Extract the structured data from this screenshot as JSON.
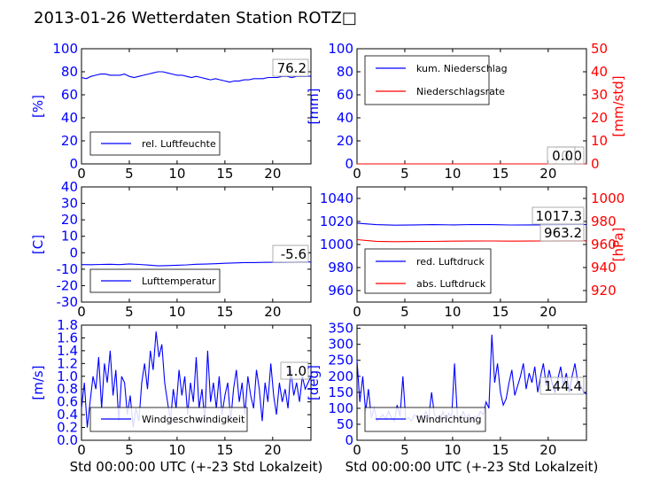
{
  "title": "2013-01-26 Wetterdaten Station ROTZ□",
  "colors": {
    "blue": "#0000ff",
    "red": "#ff0000",
    "black": "#000000"
  },
  "chart_data": [
    {
      "id": "humidity",
      "type": "line",
      "xlim": [
        0,
        24
      ],
      "x_ticks": [
        0,
        5,
        10,
        15,
        20
      ],
      "ylim": [
        0,
        100
      ],
      "y_ticks": [
        0,
        20,
        40,
        60,
        80,
        100
      ],
      "ylabel": "[%]",
      "series": [
        {
          "name": "rel. Luftfeuchte",
          "color": "#0000ff",
          "x": [
            0,
            0.5,
            1,
            1.5,
            2,
            2.5,
            3,
            3.5,
            4,
            4.5,
            5,
            5.5,
            6,
            6.5,
            7,
            7.5,
            8,
            8.5,
            9,
            9.5,
            10,
            10.5,
            11,
            11.5,
            12,
            12.5,
            13,
            13.5,
            14,
            14.5,
            15,
            15.5,
            16,
            16.5,
            17,
            17.5,
            18,
            18.5,
            19,
            19.5,
            20,
            20.5,
            21,
            21.5,
            22,
            22.5,
            23,
            23.5,
            24
          ],
          "y": [
            75,
            74,
            76,
            77,
            78,
            78,
            77,
            77,
            77,
            78,
            76,
            75,
            76,
            77,
            78,
            79,
            80,
            80,
            79,
            78,
            77,
            77,
            76,
            75,
            76,
            75,
            74,
            73,
            74,
            73,
            72,
            71,
            72,
            72,
            73,
            73,
            74,
            74,
            74,
            75,
            75,
            75,
            76,
            76,
            75,
            76,
            76,
            76,
            76.2
          ]
        }
      ],
      "last_value_label": "76.2",
      "legend_placement": "lower-left"
    },
    {
      "id": "precip",
      "type": "line",
      "xlim": [
        0,
        24
      ],
      "x_ticks": [
        0,
        5,
        10,
        15,
        20
      ],
      "ylim": [
        0,
        100
      ],
      "y_ticks": [
        0,
        20,
        40,
        60,
        80,
        100
      ],
      "ylabel": "[mm]",
      "y2lim": [
        0,
        50
      ],
      "y2_ticks": [
        0,
        10,
        20,
        30,
        40,
        50
      ],
      "y2label": "[mm/std]",
      "series": [
        {
          "name": "kum. Niederschlag",
          "color": "#0000ff",
          "axis": "left",
          "x": [
            0,
            24
          ],
          "y": [
            0,
            0
          ]
        },
        {
          "name": "Niederschlagsrate",
          "color": "#ff0000",
          "axis": "right",
          "x": [
            0,
            24
          ],
          "y": [
            0,
            0
          ]
        }
      ],
      "value_labels": [
        "0.0",
        "0.0"
      ],
      "legend_placement": "upper-left"
    },
    {
      "id": "temperature",
      "type": "line",
      "xlim": [
        0,
        24
      ],
      "x_ticks": [
        0,
        5,
        10,
        15,
        20
      ],
      "ylim": [
        -30,
        40
      ],
      "y_ticks": [
        -30,
        -20,
        -10,
        0,
        10,
        20,
        30,
        40
      ],
      "ylabel": "[C]",
      "series": [
        {
          "name": "Lufttemperatur",
          "color": "#0000ff",
          "x": [
            0,
            1,
            2,
            3,
            4,
            5,
            6,
            7,
            8,
            9,
            10,
            11,
            12,
            13,
            14,
            15,
            16,
            17,
            18,
            19,
            20,
            21,
            22,
            23,
            24
          ],
          "y": [
            -7.2,
            -7.3,
            -7.1,
            -7.0,
            -7.2,
            -6.8,
            -7.1,
            -7.5,
            -8.0,
            -7.8,
            -7.6,
            -7.4,
            -7.0,
            -6.9,
            -6.7,
            -6.4,
            -6.2,
            -6.0,
            -6.0,
            -5.9,
            -5.8,
            -5.8,
            -5.7,
            -5.6,
            -5.6
          ]
        }
      ],
      "last_value_label": "-5.6",
      "legend_placement": "lower-left"
    },
    {
      "id": "pressure",
      "type": "line",
      "xlim": [
        0,
        24
      ],
      "x_ticks": [
        0,
        5,
        10,
        15,
        20
      ],
      "ylim": [
        950,
        1050
      ],
      "y_ticks": [
        960,
        980,
        1000,
        1020,
        1040
      ],
      "ylabel": "",
      "y2lim": [
        910,
        1010
      ],
      "y2_ticks": [
        920,
        940,
        960,
        980,
        1000
      ],
      "y2label": "[hPa]",
      "series": [
        {
          "name": "red. Luftdruck",
          "color": "#0000ff",
          "axis": "left",
          "x": [
            0,
            2,
            4,
            6,
            8,
            10,
            12,
            14,
            16,
            18,
            20,
            22,
            24
          ],
          "y": [
            1018.5,
            1017.2,
            1016.8,
            1017.0,
            1017.2,
            1017.0,
            1017.3,
            1017.2,
            1016.9,
            1017.0,
            1017.1,
            1017.2,
            1017.3
          ]
        },
        {
          "name": "abs. Luftdruck",
          "color": "#ff0000",
          "axis": "right",
          "x": [
            0,
            2,
            4,
            6,
            8,
            10,
            12,
            14,
            16,
            18,
            20,
            22,
            24
          ],
          "y": [
            964.2,
            962.8,
            962.5,
            962.6,
            962.7,
            962.9,
            963.0,
            963.1,
            962.9,
            963.0,
            963.1,
            963.2,
            963.2
          ]
        }
      ],
      "value_labels": [
        "1017.3",
        "963.2"
      ],
      "legend_placement": "lower-left"
    },
    {
      "id": "windspeed",
      "type": "line",
      "xlim": [
        0,
        24
      ],
      "x_ticks": [
        0,
        5,
        10,
        15,
        20
      ],
      "ylim": [
        0,
        1.8
      ],
      "y_ticks": [
        0.0,
        0.2,
        0.4,
        0.6,
        0.8,
        1.0,
        1.2,
        1.4,
        1.6,
        1.8
      ],
      "ylabel": "[m/s]",
      "xlabel": "Std 00:00:00 UTC (+-23 Std Lokalzeit)",
      "series": [
        {
          "name": "Windgeschwindigkeit",
          "color": "#0000ff",
          "x": [
            0,
            0.3,
            0.6,
            0.9,
            1.2,
            1.5,
            1.8,
            2.1,
            2.4,
            2.7,
            3.0,
            3.3,
            3.6,
            3.9,
            4.2,
            4.5,
            4.8,
            5.1,
            5.4,
            5.7,
            6.0,
            6.3,
            6.6,
            6.9,
            7.2,
            7.5,
            7.8,
            8.1,
            8.4,
            8.7,
            9.0,
            9.3,
            9.6,
            9.9,
            10.2,
            10.5,
            10.8,
            11.1,
            11.4,
            11.7,
            12.0,
            12.3,
            12.6,
            12.9,
            13.2,
            13.5,
            13.8,
            14.1,
            14.4,
            14.7,
            15.0,
            15.3,
            15.6,
            15.9,
            16.2,
            16.5,
            16.8,
            17.1,
            17.4,
            17.7,
            18.0,
            18.3,
            18.6,
            18.9,
            19.2,
            19.5,
            19.8,
            20.1,
            20.4,
            20.7,
            21.0,
            21.3,
            21.6,
            21.9,
            22.2,
            22.5,
            22.8,
            23.1,
            23.4,
            23.7,
            24.0
          ],
          "y": [
            0.5,
            0.9,
            0.2,
            0.6,
            1.0,
            0.8,
            1.3,
            0.5,
            1.2,
            0.9,
            1.4,
            0.7,
            1.1,
            0.3,
            1.0,
            0.9,
            0.4,
            0.7,
            0.2,
            0.5,
            0.3,
            0.9,
            1.2,
            0.8,
            1.4,
            1.1,
            1.7,
            1.3,
            1.5,
            0.9,
            0.6,
            0.3,
            0.8,
            0.5,
            1.1,
            0.7,
            1.0,
            0.4,
            0.9,
            0.6,
            1.3,
            0.5,
            0.8,
            0.3,
            1.4,
            0.6,
            0.9,
            0.5,
            1.0,
            0.4,
            0.7,
            0.9,
            0.3,
            0.8,
            1.1,
            0.6,
            0.9,
            0.4,
            1.0,
            0.7,
            0.5,
            1.1,
            0.8,
            0.3,
            0.9,
            0.6,
            1.2,
            0.7,
            0.4,
            0.9,
            0.6,
            0.8,
            0.5,
            1.1,
            0.7,
            0.9,
            0.6,
            1.0,
            0.8,
            0.9,
            1.0
          ]
        }
      ],
      "last_value_label": "1.0",
      "legend_placement": "lower-center"
    },
    {
      "id": "winddir",
      "type": "line",
      "xlim": [
        0,
        24
      ],
      "x_ticks": [
        0,
        5,
        10,
        15,
        20
      ],
      "ylim": [
        0,
        360
      ],
      "y_ticks": [
        0,
        50,
        100,
        150,
        200,
        250,
        300,
        350
      ],
      "ylabel": "[deg]",
      "xlabel": "Std 00:00:00 UTC (+-23 Std Lokalzeit)",
      "series": [
        {
          "name": "Windrichtung",
          "color": "#0000ff",
          "x": [
            0,
            0.3,
            0.6,
            0.9,
            1.2,
            1.5,
            1.8,
            2.1,
            2.4,
            2.7,
            3.0,
            3.3,
            3.6,
            3.9,
            4.2,
            4.5,
            4.8,
            5.1,
            5.4,
            5.7,
            6.0,
            6.3,
            6.6,
            6.9,
            7.2,
            7.5,
            7.8,
            8.1,
            8.4,
            8.7,
            9.0,
            9.3,
            9.6,
            9.9,
            10.2,
            10.5,
            10.8,
            11.1,
            11.4,
            11.7,
            12.0,
            12.3,
            12.6,
            12.9,
            13.2,
            13.5,
            13.8,
            14.1,
            14.4,
            14.7,
            15.0,
            15.3,
            15.6,
            15.9,
            16.2,
            16.5,
            16.8,
            17.1,
            17.4,
            17.7,
            18.0,
            18.3,
            18.6,
            18.9,
            19.2,
            19.5,
            19.8,
            20.1,
            20.4,
            20.7,
            21.0,
            21.3,
            21.6,
            21.9,
            22.2,
            22.5,
            22.8,
            23.1,
            23.4,
            23.7,
            24.0
          ],
          "y": [
            250,
            120,
            200,
            90,
            160,
            70,
            100,
            60,
            70,
            80,
            65,
            90,
            70,
            60,
            110,
            75,
            200,
            65,
            70,
            60,
            80,
            70,
            75,
            65,
            90,
            70,
            150,
            80,
            70,
            65,
            90,
            60,
            85,
            70,
            240,
            75,
            60,
            90,
            70,
            80,
            60,
            75,
            70,
            90,
            80,
            120,
            100,
            330,
            180,
            240,
            150,
            110,
            130,
            180,
            220,
            140,
            170,
            200,
            240,
            160,
            210,
            180,
            230,
            150,
            200,
            240,
            170,
            220,
            180,
            150,
            190,
            230,
            170,
            210,
            150,
            200,
            240,
            180,
            170,
            150,
            144
          ]
        }
      ],
      "last_value_label": "144.4",
      "legend_placement": "lower-left"
    }
  ]
}
